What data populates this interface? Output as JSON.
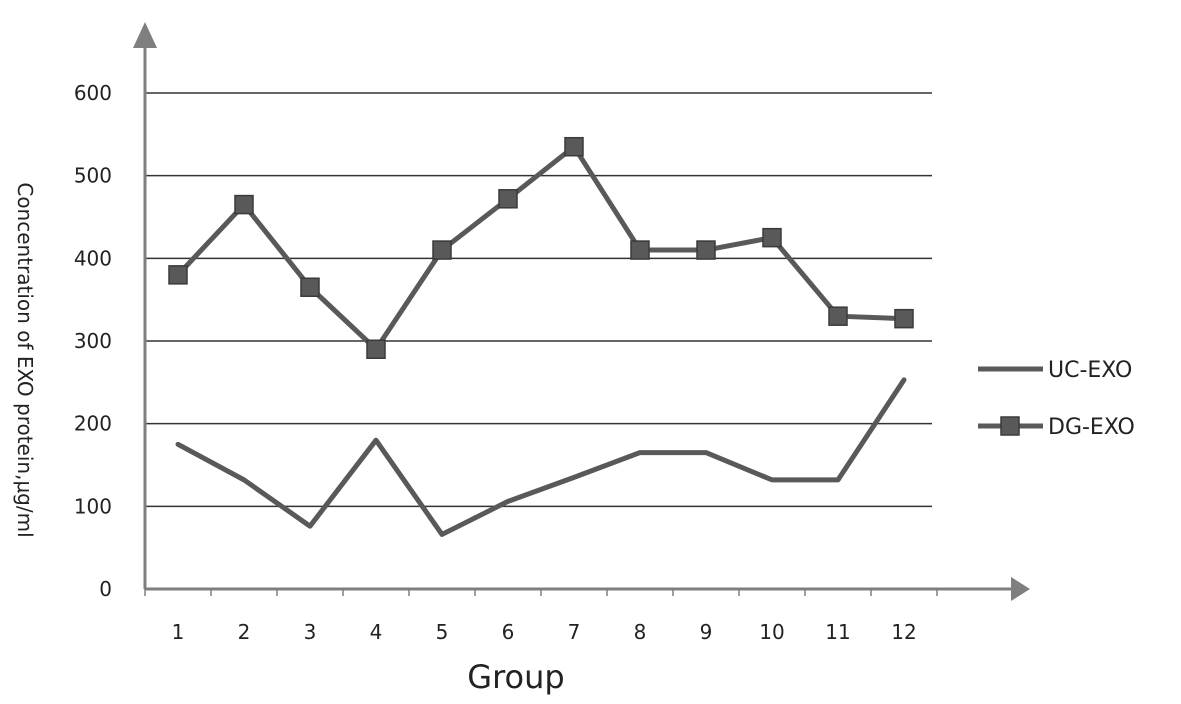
{
  "chart_data": {
    "type": "line",
    "title": "",
    "xlabel": "Group",
    "ylabel": "Concentration of EXO protein,μg/ml",
    "categories": [
      "1",
      "2",
      "3",
      "4",
      "5",
      "6",
      "7",
      "8",
      "9",
      "10",
      "11",
      "12"
    ],
    "ylim": [
      0,
      650
    ],
    "yticks": [
      "0",
      "100",
      "200",
      "300",
      "400",
      "500",
      "600"
    ],
    "grid": true,
    "legend_position": "right",
    "series": [
      {
        "name": "UC-EXO",
        "marker": "none",
        "color": "#595959",
        "values": [
          175,
          132,
          76,
          180,
          66,
          106,
          135,
          165,
          165,
          132,
          132,
          253
        ]
      },
      {
        "name": "DG-EXO",
        "marker": "square",
        "color": "#595959",
        "values": [
          380,
          465,
          365,
          290,
          410,
          472,
          535,
          410,
          410,
          425,
          330,
          327
        ]
      }
    ]
  }
}
